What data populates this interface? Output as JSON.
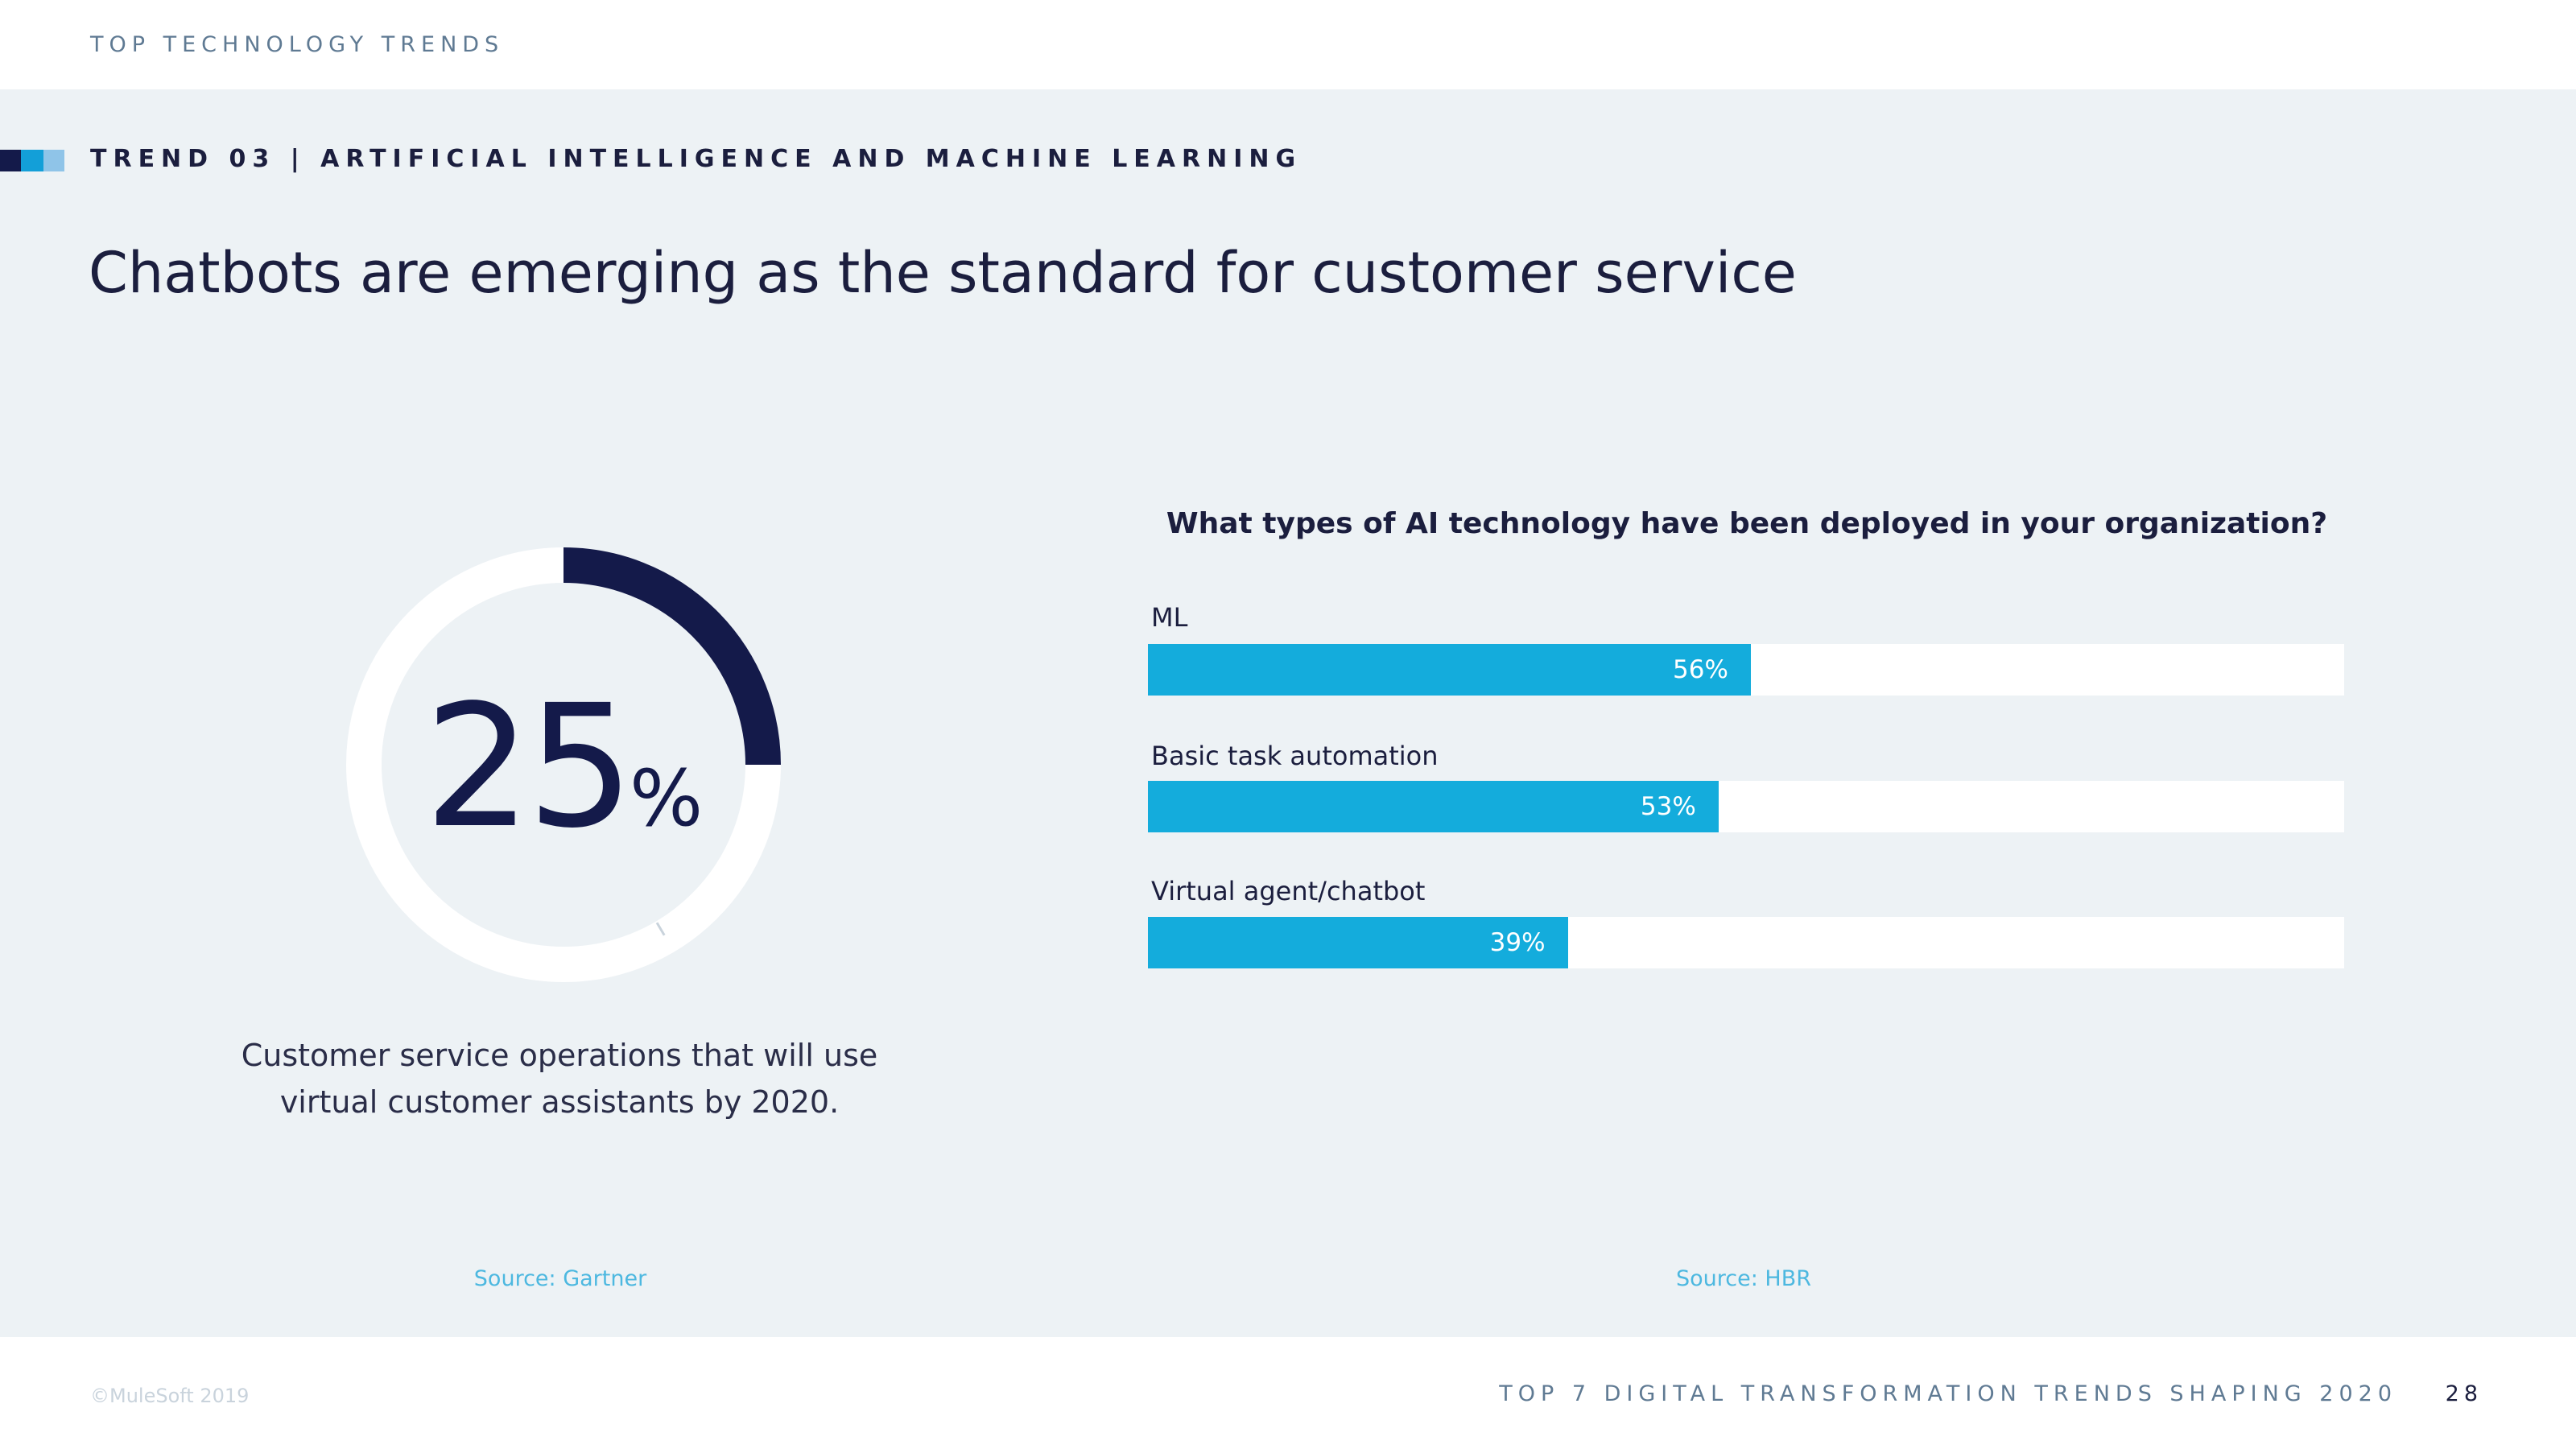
{
  "header": {
    "section_label": "TOP TECHNOLOGY TRENDS"
  },
  "trend": {
    "label": "TREND 03 | ARTIFICIAL INTELLIGENCE AND MACHINE LEARNING",
    "headline": "Chatbots are emerging as the standard for customer service"
  },
  "colors": {
    "navy": "#141a4a",
    "accent_blue": "#14acdc",
    "light_blue": "#8fc4e8",
    "panel_bg": "#edf2f5",
    "track": "#ffffff"
  },
  "chart_data": [
    {
      "type": "pie",
      "variant": "donut",
      "value": 25,
      "value_text": "25",
      "unit": "%",
      "caption_lines": [
        "Customer service operations that will use",
        "virtual customer assistants by 2020."
      ],
      "source": "Source: Gartner"
    },
    {
      "type": "bar",
      "orientation": "horizontal",
      "title": "What types of AI technology have been deployed in your organization?",
      "categories": [
        "ML",
        "Basic task automation",
        "Virtual agent/chatbot"
      ],
      "values": [
        56,
        53,
        39
      ],
      "value_labels": [
        "56%",
        "53%",
        "39%"
      ],
      "xlim": [
        0,
        100
      ],
      "source": "Source: HBR"
    }
  ],
  "footer": {
    "copyright": "©MuleSoft 2019",
    "title": "TOP 7 DIGITAL TRANSFORMATION TRENDS SHAPING 2020",
    "page_number": "28"
  }
}
